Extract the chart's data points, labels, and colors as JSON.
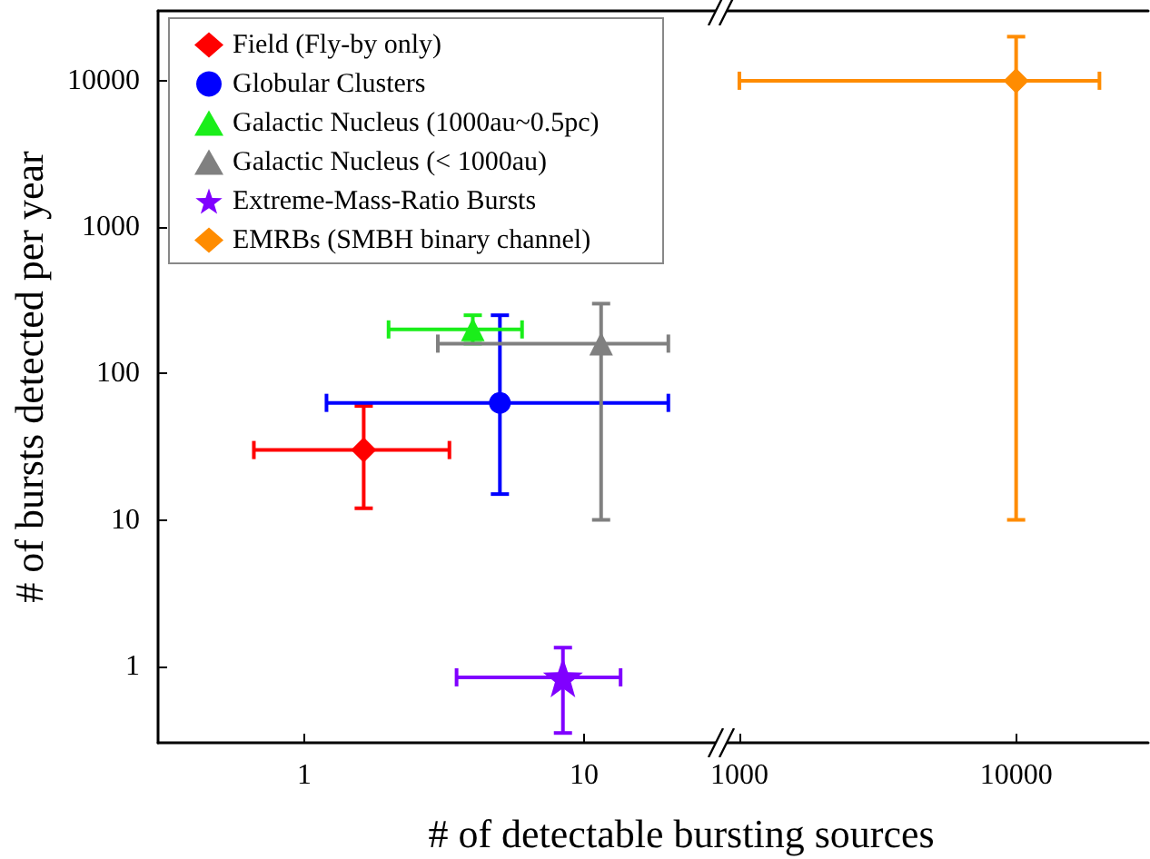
{
  "chart_data": [
    {
      "type": "scatter",
      "xlabel": "# of detectable bursting sources",
      "ylabel": "# of bursts detected per year",
      "log": "xy",
      "xlim": [
        0.3,
        30
      ],
      "xticks": [
        1,
        10
      ],
      "ylim": [
        0.3,
        30000
      ],
      "yticks": [
        1,
        10,
        100,
        1000,
        10000
      ],
      "grid": false,
      "legend": "top left",
      "series": [
        {
          "name": "Field (Fly-by only)",
          "color": "#ff0000",
          "marker": "diamond",
          "x": [
            1.63
          ],
          "values": [
            30
          ],
          "errors": [
            [
              12,
              60
            ]
          ],
          "xerrors": [
            [
              0.66,
              3.3
            ]
          ]
        },
        {
          "name": "Globular Clusters",
          "color": "#0000ff",
          "marker": "circle",
          "x": [
            5
          ],
          "values": [
            63
          ],
          "errors": [
            [
              15,
              250
            ]
          ],
          "xerrors": [
            [
              1.2,
              20
            ]
          ]
        },
        {
          "name": "Galactic Nucleus (1000au~0.5pc)",
          "color": "#1aee1a",
          "marker": "triangle",
          "x": [
            4
          ],
          "values": [
            200
          ],
          "errors": [
            [
              160,
              250
            ]
          ],
          "xerrors": [
            [
              2,
              6
            ]
          ]
        },
        {
          "name": "Galactic Nucleus (< 1000au)",
          "color": "#808080",
          "marker": "triangle",
          "x": [
            11.5
          ],
          "values": [
            160
          ],
          "errors": [
            [
              10,
              300
            ]
          ],
          "xerrors": [
            [
              3,
              20
            ]
          ]
        },
        {
          "name": "Extreme-Mass-Ratio Bursts",
          "color": "#8000ff",
          "marker": "star",
          "x": [
            8.4
          ],
          "values": [
            0.84
          ],
          "errors": [
            [
              0.35,
              1.34
            ]
          ],
          "xerrors": [
            [
              3.5,
              13.5
            ]
          ]
        }
      ]
    },
    {
      "type": "scatter",
      "log": "xy",
      "xlim": [
        900,
        30000
      ],
      "xticks": [
        1000,
        10000
      ],
      "ylim": [
        0.3,
        30000
      ],
      "yticks": [
        1,
        10,
        100,
        1000,
        10000
      ],
      "grid": false,
      "tick_labels": "x",
      "legend": "top left",
      "series": [
        {
          "name": "EMRBs (SMBH binary channel)",
          "color": "#ff8c00",
          "marker": "diamond",
          "x": [
            10000
          ],
          "values": [
            10000
          ],
          "errors": [
            [
              10,
              20000
            ]
          ],
          "xerrors": [
            [
              1000,
              20000
            ]
          ]
        }
      ]
    }
  ]
}
